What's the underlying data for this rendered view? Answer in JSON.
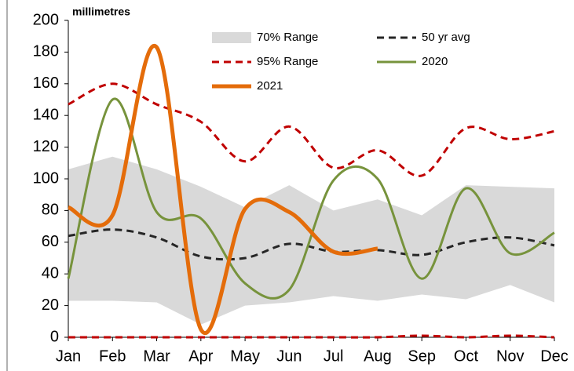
{
  "chart_data": {
    "type": "line",
    "ylabel": "millimetres",
    "categories": [
      "Jan",
      "Feb",
      "Mar",
      "Apr",
      "May",
      "Jun",
      "Jul",
      "Aug",
      "Sep",
      "Oct",
      "Nov",
      "Dec"
    ],
    "ylim": [
      0,
      200
    ],
    "yticks": [
      0,
      20,
      40,
      60,
      80,
      100,
      120,
      140,
      160,
      180,
      200
    ],
    "series": [
      {
        "name": "70% Range",
        "kind": "band",
        "color": "#d9d9d9",
        "low": [
          23,
          23,
          22,
          8,
          20,
          22,
          26,
          23,
          27,
          24,
          33,
          22
        ],
        "high": [
          106,
          114,
          106,
          95,
          82,
          96,
          80,
          87,
          77,
          96,
          95,
          94
        ]
      },
      {
        "name": "50 yr avg",
        "kind": "dashed",
        "color": "#262626",
        "values": [
          64,
          68,
          63,
          51,
          50,
          59,
          54,
          55,
          52,
          60,
          63,
          58
        ]
      },
      {
        "name": "95% Range",
        "kind": "dashed-pair",
        "color": "#c00000",
        "low": [
          0,
          0,
          0,
          0,
          0,
          0,
          0,
          0,
          1,
          0,
          1,
          0
        ],
        "high": [
          147,
          160,
          147,
          136,
          111,
          133,
          107,
          118,
          102,
          132,
          125,
          130
        ]
      },
      {
        "name": "2020",
        "kind": "solid",
        "color": "#77933c",
        "width": 3,
        "values": [
          37,
          150,
          79,
          75,
          34,
          30,
          99,
          100,
          37,
          94,
          53,
          66
        ]
      },
      {
        "name": "2021",
        "kind": "solid",
        "color": "#e46c0a",
        "width": 5,
        "values": [
          82,
          77,
          183,
          5,
          81,
          79,
          54,
          56,
          null,
          null,
          null,
          null
        ]
      }
    ]
  }
}
